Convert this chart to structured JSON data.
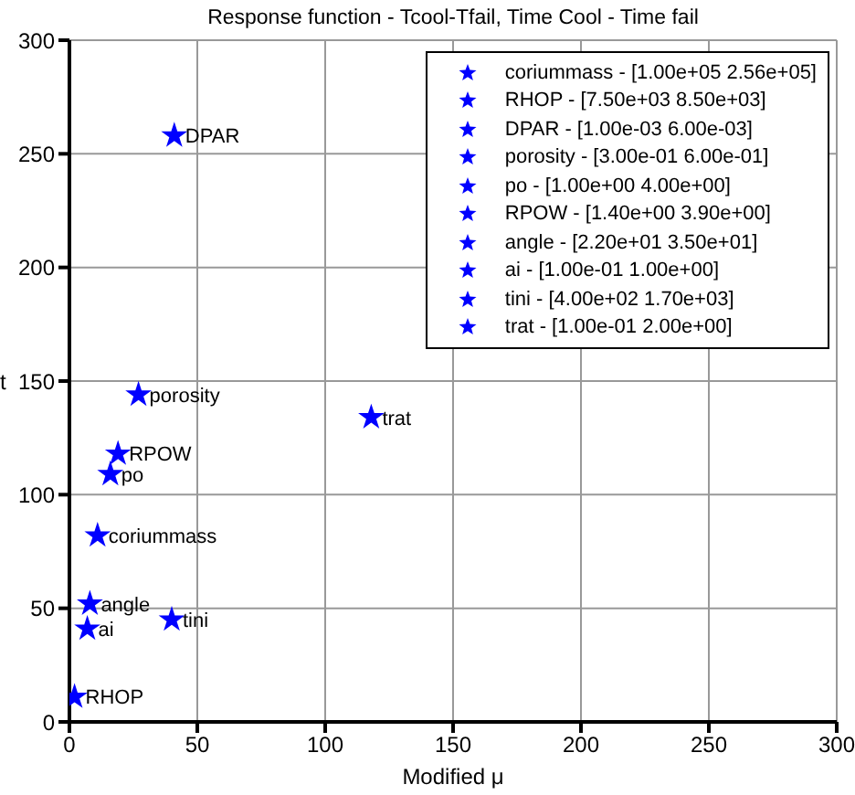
{
  "chart_data": {
    "type": "scatter",
    "title": "Response function - Tcool-Tfail, Time Cool - Time fail",
    "xlabel": "Modified μ",
    "ylabel": "t",
    "xlim": [
      0,
      300
    ],
    "xticks": [
      0,
      50,
      100,
      150,
      200,
      250,
      300
    ],
    "ylim": [
      0,
      300
    ],
    "yticks": [
      0,
      50,
      100,
      150,
      200,
      250,
      300
    ],
    "grid": true,
    "legend": "top right",
    "marker": "star",
    "series": [
      {
        "name": "coriummass - [1.00e+05 2.56e+05]",
        "color": "#0000ff",
        "x": [
          11
        ],
        "values": [
          82
        ]
      },
      {
        "name": "RHOP - [7.50e+03 8.50e+03]",
        "color": "#0000ff",
        "x": [
          2
        ],
        "values": [
          11
        ]
      },
      {
        "name": "DPAR - [1.00e-03 6.00e-03]",
        "color": "#0000ff",
        "x": [
          41
        ],
        "values": [
          258
        ]
      },
      {
        "name": "porosity - [3.00e-01 6.00e-01]",
        "color": "#0000ff",
        "x": [
          27
        ],
        "values": [
          144
        ]
      },
      {
        "name": "po - [1.00e+00 4.00e+00]",
        "color": "#0000ff",
        "x": [
          16
        ],
        "values": [
          109
        ]
      },
      {
        "name": "RPOW - [1.40e+00 3.90e+00]",
        "color": "#0000ff",
        "x": [
          19
        ],
        "values": [
          118
        ]
      },
      {
        "name": "angle - [2.20e+01 3.50e+01]",
        "color": "#0000ff",
        "x": [
          8
        ],
        "values": [
          52
        ]
      },
      {
        "name": "ai - [1.00e-01 1.00e+00]",
        "color": "#0000ff",
        "x": [
          7
        ],
        "values": [
          41
        ]
      },
      {
        "name": "tini - [4.00e+02 1.70e+03]",
        "color": "#0000ff",
        "x": [
          40
        ],
        "values": [
          45
        ]
      },
      {
        "name": "trat - [1.00e-01 2.00e+00]",
        "color": "#0000ff",
        "x": [
          118
        ],
        "values": [
          134
        ]
      }
    ],
    "annotations": [
      {
        "text": "coriummass",
        "x": 11,
        "y": 82
      },
      {
        "text": "RHOP",
        "x": 2,
        "y": 11
      },
      {
        "text": "DPAR",
        "x": 41,
        "y": 258
      },
      {
        "text": "porosity",
        "x": 27,
        "y": 144
      },
      {
        "text": "po",
        "x": 16,
        "y": 109
      },
      {
        "text": "RPOW",
        "x": 19,
        "y": 118
      },
      {
        "text": "angle",
        "x": 8,
        "y": 52
      },
      {
        "text": "ai",
        "x": 7,
        "y": 41
      },
      {
        "text": "tini",
        "x": 40,
        "y": 45
      },
      {
        "text": "trat",
        "x": 118,
        "y": 134
      }
    ]
  }
}
